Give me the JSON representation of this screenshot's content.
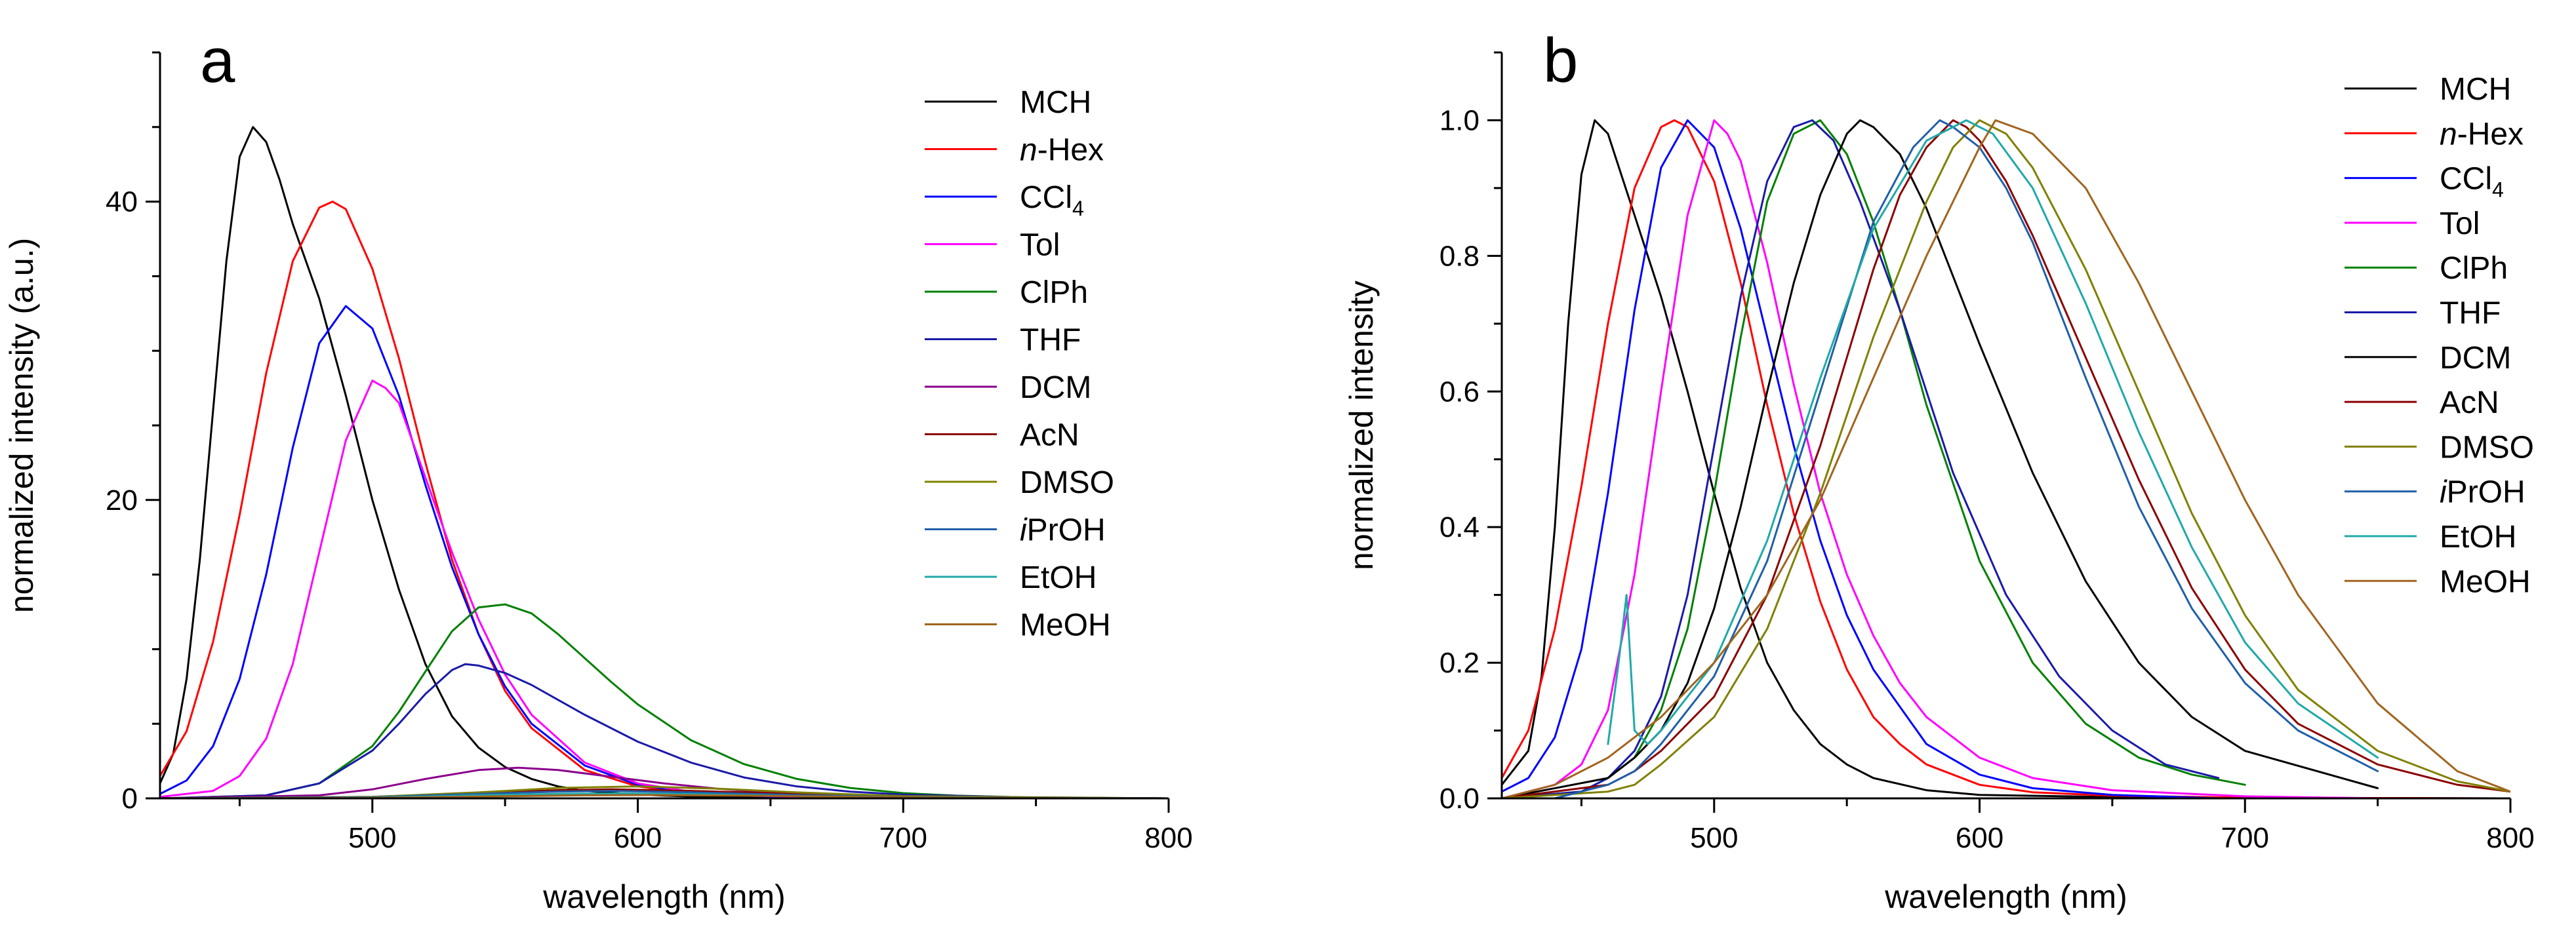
{
  "chart_data": [
    {
      "type": "line",
      "panel_label": "a",
      "title": "",
      "xlabel": "wavelength (nm)",
      "ylabel": "normalized intensity (a.u.)",
      "xlim": [
        420,
        800
      ],
      "ylim": [
        0,
        50
      ],
      "xticks": [
        500,
        600,
        700,
        800
      ],
      "yticks": [
        0,
        20,
        40
      ],
      "grid": false,
      "legend_position": "top-right",
      "series": [
        {
          "name": "MCH",
          "color": "#000000",
          "x": [
            420,
            425,
            430,
            435,
            440,
            445,
            450,
            455,
            460,
            465,
            470,
            480,
            490,
            500,
            510,
            520,
            530,
            540,
            550,
            560,
            570,
            580,
            600,
            620,
            650,
            700,
            800
          ],
          "y": [
            1.0,
            3.0,
            8.0,
            16.0,
            26.0,
            36.0,
            43.0,
            45.0,
            44.0,
            41.5,
            38.5,
            33.5,
            27.0,
            20.0,
            14.0,
            9.0,
            5.5,
            3.4,
            2.1,
            1.3,
            0.8,
            0.5,
            0.25,
            0.12,
            0.05,
            0.02,
            0.0
          ]
        },
        {
          "name": "n-Hex",
          "color": "#ff0000",
          "x": [
            420,
            430,
            440,
            450,
            460,
            470,
            480,
            485,
            490,
            500,
            510,
            520,
            530,
            540,
            550,
            560,
            580,
            600,
            620,
            650,
            700,
            800
          ],
          "y": [
            1.5,
            4.5,
            10.5,
            19.0,
            28.5,
            36.0,
            39.6,
            40.0,
            39.5,
            35.5,
            29.5,
            22.5,
            16.0,
            11.0,
            7.2,
            4.7,
            1.9,
            0.8,
            0.35,
            0.12,
            0.03,
            0.0
          ]
        },
        {
          "name": "CCl4",
          "color": "#0000ff",
          "x": [
            420,
            430,
            440,
            450,
            460,
            470,
            480,
            490,
            500,
            510,
            520,
            530,
            540,
            550,
            560,
            580,
            600,
            620,
            650,
            700,
            800
          ],
          "y": [
            0.3,
            1.2,
            3.5,
            8.0,
            15.0,
            23.5,
            30.5,
            33.0,
            31.5,
            27.0,
            21.0,
            15.5,
            11.0,
            7.5,
            5.0,
            2.2,
            0.9,
            0.4,
            0.12,
            0.03,
            0.0
          ]
        },
        {
          "name": "Tol",
          "color": "#ff00ff",
          "x": [
            420,
            440,
            450,
            460,
            470,
            480,
            490,
            500,
            505,
            510,
            520,
            530,
            540,
            550,
            560,
            580,
            600,
            620,
            650,
            700,
            800
          ],
          "y": [
            0.1,
            0.5,
            1.5,
            4.0,
            9.0,
            16.5,
            24.0,
            28.0,
            27.5,
            26.5,
            21.5,
            16.5,
            12.0,
            8.3,
            5.6,
            2.4,
            1.0,
            0.45,
            0.15,
            0.04,
            0.0
          ]
        },
        {
          "name": "ClPh",
          "color": "#008000",
          "x": [
            420,
            460,
            480,
            500,
            510,
            520,
            530,
            540,
            550,
            560,
            570,
            580,
            590,
            600,
            620,
            640,
            660,
            680,
            700,
            720,
            750,
            800
          ],
          "y": [
            0.0,
            0.2,
            1.0,
            3.5,
            5.8,
            8.5,
            11.2,
            12.8,
            13.0,
            12.4,
            11.0,
            9.4,
            7.8,
            6.3,
            3.9,
            2.3,
            1.3,
            0.7,
            0.35,
            0.18,
            0.05,
            0.0
          ]
        },
        {
          "name": "THF",
          "color": "#1a1aa8",
          "x": [
            420,
            460,
            480,
            500,
            510,
            520,
            530,
            535,
            540,
            550,
            560,
            570,
            580,
            600,
            620,
            640,
            660,
            680,
            700,
            750,
            800
          ],
          "y": [
            0.0,
            0.2,
            1.0,
            3.2,
            5.0,
            7.0,
            8.6,
            9.0,
            8.9,
            8.4,
            7.6,
            6.6,
            5.6,
            3.8,
            2.4,
            1.4,
            0.8,
            0.45,
            0.25,
            0.05,
            0.0
          ]
        },
        {
          "name": "DCM",
          "color": "#8b008b",
          "x": [
            420,
            480,
            500,
            520,
            540,
            555,
            570,
            590,
            610,
            630,
            650,
            680,
            700,
            750,
            800
          ],
          "y": [
            0.0,
            0.2,
            0.6,
            1.3,
            1.9,
            2.05,
            1.9,
            1.45,
            1.0,
            0.65,
            0.4,
            0.2,
            0.1,
            0.03,
            0.0
          ]
        },
        {
          "name": "AcN",
          "color": "#8b0000",
          "x": [
            420,
            500,
            540,
            570,
            590,
            620,
            660,
            700,
            800
          ],
          "y": [
            0.0,
            0.1,
            0.35,
            0.55,
            0.6,
            0.5,
            0.3,
            0.12,
            0.0
          ]
        },
        {
          "name": "DMSO",
          "color": "#808000",
          "x": [
            420,
            500,
            540,
            570,
            600,
            630,
            660,
            700,
            800
          ],
          "y": [
            0.0,
            0.1,
            0.4,
            0.7,
            0.8,
            0.65,
            0.4,
            0.15,
            0.0
          ]
        },
        {
          "name": "iPrOH",
          "color": "#1f5fa8",
          "x": [
            420,
            500,
            540,
            570,
            590,
            620,
            660,
            700,
            800
          ],
          "y": [
            0.0,
            0.08,
            0.3,
            0.45,
            0.5,
            0.4,
            0.22,
            0.08,
            0.0
          ]
        },
        {
          "name": "EtOH",
          "color": "#20a8a8",
          "x": [
            420,
            500,
            540,
            570,
            595,
            620,
            660,
            700,
            800
          ],
          "y": [
            0.0,
            0.05,
            0.2,
            0.3,
            0.33,
            0.28,
            0.15,
            0.06,
            0.0
          ]
        },
        {
          "name": "MeOH",
          "color": "#a0641e",
          "x": [
            420,
            500,
            540,
            580,
            605,
            640,
            680,
            720,
            800
          ],
          "y": [
            0.0,
            0.03,
            0.12,
            0.2,
            0.22,
            0.18,
            0.1,
            0.04,
            0.0
          ]
        }
      ]
    },
    {
      "type": "line",
      "panel_label": "b",
      "title": "",
      "xlabel": "wavelength (nm)",
      "ylabel": "normalized intensity",
      "xlim": [
        420,
        800
      ],
      "ylim": [
        0,
        1.1
      ],
      "xticks": [
        500,
        600,
        700,
        800
      ],
      "yticks": [
        0.0,
        0.2,
        0.4,
        0.6,
        0.8,
        1.0
      ],
      "grid": false,
      "legend_position": "top-right",
      "series": [
        {
          "name": "MCH",
          "color": "#000000",
          "x": [
            420,
            430,
            435,
            440,
            445,
            450,
            455,
            460,
            465,
            470,
            480,
            490,
            500,
            510,
            520,
            530,
            540,
            550,
            560,
            580,
            600,
            650,
            700,
            800
          ],
          "y": [
            0.02,
            0.07,
            0.18,
            0.4,
            0.7,
            0.92,
            1.0,
            0.98,
            0.92,
            0.86,
            0.74,
            0.6,
            0.45,
            0.31,
            0.2,
            0.13,
            0.08,
            0.05,
            0.03,
            0.012,
            0.005,
            0.002,
            0.001,
            0.0
          ]
        },
        {
          "name": "n-Hex",
          "color": "#ff0000",
          "x": [
            420,
            430,
            440,
            450,
            460,
            470,
            480,
            485,
            490,
            500,
            510,
            520,
            530,
            540,
            550,
            560,
            570,
            580,
            600,
            620,
            650,
            700,
            800
          ],
          "y": [
            0.03,
            0.1,
            0.25,
            0.46,
            0.7,
            0.9,
            0.99,
            1.0,
            0.99,
            0.91,
            0.76,
            0.58,
            0.42,
            0.29,
            0.19,
            0.12,
            0.08,
            0.05,
            0.02,
            0.009,
            0.004,
            0.001,
            0.0
          ]
        },
        {
          "name": "CCl4",
          "color": "#0000ff",
          "x": [
            420,
            430,
            440,
            450,
            460,
            470,
            480,
            490,
            500,
            510,
            520,
            530,
            540,
            550,
            560,
            580,
            600,
            620,
            650,
            690
          ],
          "y": [
            0.01,
            0.03,
            0.09,
            0.22,
            0.45,
            0.72,
            0.93,
            1.0,
            0.96,
            0.84,
            0.68,
            0.52,
            0.38,
            0.27,
            0.19,
            0.08,
            0.035,
            0.015,
            0.005,
            0.0
          ]
        },
        {
          "name": "Tol",
          "color": "#ff00ff",
          "x": [
            420,
            440,
            450,
            460,
            470,
            480,
            490,
            500,
            505,
            510,
            520,
            530,
            540,
            550,
            560,
            570,
            580,
            600,
            620,
            650,
            700,
            750
          ],
          "y": [
            0.0,
            0.02,
            0.05,
            0.13,
            0.33,
            0.6,
            0.86,
            1.0,
            0.98,
            0.94,
            0.79,
            0.61,
            0.45,
            0.33,
            0.24,
            0.17,
            0.12,
            0.06,
            0.03,
            0.012,
            0.003,
            0.0
          ]
        },
        {
          "name": "ClPh",
          "color": "#008000",
          "x": [
            420,
            450,
            460,
            470,
            480,
            490,
            500,
            510,
            520,
            530,
            540,
            550,
            560,
            570,
            580,
            600,
            620,
            640,
            660,
            680,
            700
          ],
          "y": [
            0.0,
            0.01,
            0.03,
            0.06,
            0.13,
            0.25,
            0.45,
            0.68,
            0.88,
            0.98,
            1.0,
            0.95,
            0.85,
            0.72,
            0.58,
            0.35,
            0.2,
            0.11,
            0.06,
            0.035,
            0.02
          ]
        },
        {
          "name": "THF",
          "color": "#1a1aa8",
          "x": [
            420,
            450,
            460,
            470,
            480,
            490,
            500,
            510,
            520,
            530,
            537,
            545,
            555,
            570,
            590,
            610,
            630,
            650,
            670,
            690
          ],
          "y": [
            0.0,
            0.01,
            0.03,
            0.07,
            0.15,
            0.3,
            0.52,
            0.74,
            0.91,
            0.99,
            1.0,
            0.97,
            0.88,
            0.72,
            0.48,
            0.3,
            0.18,
            0.1,
            0.05,
            0.03
          ]
        },
        {
          "name": "DCM",
          "color": "#000000",
          "x": [
            420,
            460,
            470,
            480,
            490,
            500,
            510,
            520,
            530,
            540,
            550,
            555,
            560,
            570,
            580,
            600,
            620,
            640,
            660,
            680,
            700,
            750
          ],
          "y": [
            0.0,
            0.03,
            0.06,
            0.1,
            0.17,
            0.28,
            0.43,
            0.6,
            0.76,
            0.89,
            0.98,
            1.0,
            0.99,
            0.95,
            0.87,
            0.67,
            0.48,
            0.32,
            0.2,
            0.12,
            0.07,
            0.015
          ]
        },
        {
          "name": "AcN",
          "color": "#8b0000",
          "x": [
            420,
            460,
            470,
            480,
            500,
            520,
            540,
            560,
            570,
            580,
            590,
            595,
            600,
            610,
            620,
            640,
            660,
            680,
            700,
            720,
            750,
            780,
            800
          ],
          "y": [
            0.0,
            0.02,
            0.04,
            0.07,
            0.15,
            0.3,
            0.52,
            0.78,
            0.89,
            0.96,
            1.0,
            0.99,
            0.97,
            0.91,
            0.83,
            0.65,
            0.47,
            0.31,
            0.19,
            0.11,
            0.05,
            0.02,
            0.01
          ]
        },
        {
          "name": "DMSO",
          "color": "#808000",
          "x": [
            420,
            460,
            470,
            480,
            500,
            520,
            540,
            560,
            580,
            590,
            600,
            610,
            620,
            640,
            660,
            680,
            700,
            720,
            750,
            780,
            800
          ],
          "y": [
            0.0,
            0.01,
            0.02,
            0.05,
            0.12,
            0.25,
            0.45,
            0.68,
            0.88,
            0.96,
            1.0,
            0.98,
            0.93,
            0.78,
            0.6,
            0.42,
            0.27,
            0.16,
            0.07,
            0.025,
            0.01
          ]
        },
        {
          "name": "iPrOH",
          "color": "#1f5fa8",
          "x": [
            440,
            460,
            470,
            480,
            500,
            520,
            540,
            560,
            575,
            585,
            590,
            600,
            610,
            620,
            640,
            660,
            680,
            700,
            720,
            750
          ],
          "y": [
            0.0,
            0.02,
            0.04,
            0.08,
            0.18,
            0.35,
            0.6,
            0.85,
            0.96,
            1.0,
            0.99,
            0.96,
            0.9,
            0.82,
            0.62,
            0.43,
            0.28,
            0.17,
            0.1,
            0.04
          ]
        },
        {
          "name": "EtOH",
          "color": "#20a8a8",
          "x": [
            460,
            464,
            467,
            470,
            475,
            480,
            500,
            520,
            540,
            560,
            580,
            595,
            605,
            620,
            640,
            660,
            680,
            700,
            720,
            750
          ],
          "y": [
            0.08,
            0.2,
            0.3,
            0.1,
            0.08,
            0.1,
            0.2,
            0.38,
            0.62,
            0.84,
            0.97,
            1.0,
            0.98,
            0.9,
            0.73,
            0.54,
            0.37,
            0.23,
            0.14,
            0.06
          ]
        },
        {
          "name": "MeOH",
          "color": "#a0641e",
          "x": [
            420,
            440,
            460,
            480,
            500,
            520,
            540,
            560,
            580,
            600,
            606,
            620,
            640,
            660,
            680,
            700,
            720,
            750,
            780,
            800
          ],
          "y": [
            0.0,
            0.02,
            0.06,
            0.12,
            0.2,
            0.3,
            0.44,
            0.62,
            0.8,
            0.96,
            1.0,
            0.98,
            0.9,
            0.76,
            0.6,
            0.44,
            0.3,
            0.14,
            0.04,
            0.01
          ]
        }
      ]
    }
  ]
}
